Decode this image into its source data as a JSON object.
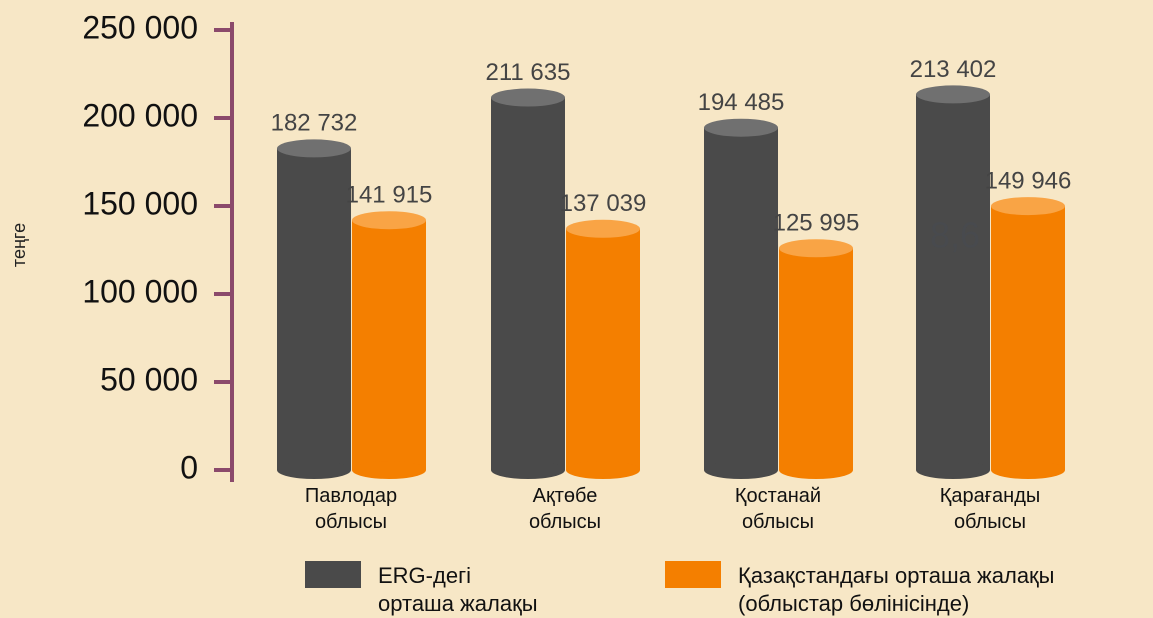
{
  "chart_data": {
    "type": "bar",
    "y_label": "теңге",
    "categories": [
      "Павлодар\nоблысы",
      "Ақтөбе\nоблысы",
      "Қостанай\nоблысы",
      "Қарағанды\nоблысы"
    ],
    "series": [
      {
        "name": "ERG-дегі\nорташа жалақы",
        "color": "#4a4a4a",
        "top_color": "#707070",
        "values": [
          182732,
          211635,
          194485,
          213402
        ],
        "value_labels": [
          "182 732",
          "211 635",
          "194 485",
          "213 402"
        ]
      },
      {
        "name": "Қазақстандағы орташа жалақы\n(облыстар бөлінісінде)",
        "color": "#f47f00",
        "top_color": "#f9a445",
        "values": [
          141915,
          137039,
          125995,
          149946
        ],
        "value_labels": [
          "141 915",
          "137 039",
          "125 995",
          "149 946"
        ]
      }
    ],
    "ylim": [
      0,
      250000
    ],
    "yticks": [
      0,
      {
        "value": 50000,
        "label": "50 000"
      },
      {
        "value": 100000,
        "label": "100 000"
      },
      {
        "value": 150000,
        "label": "150 000"
      },
      {
        "value": 200000,
        "label": "200 000"
      },
      {
        "value": 250000,
        "label": "250 000"
      }
    ],
    "axis_color": "#8b4a6b",
    "annotation": "8,6"
  }
}
